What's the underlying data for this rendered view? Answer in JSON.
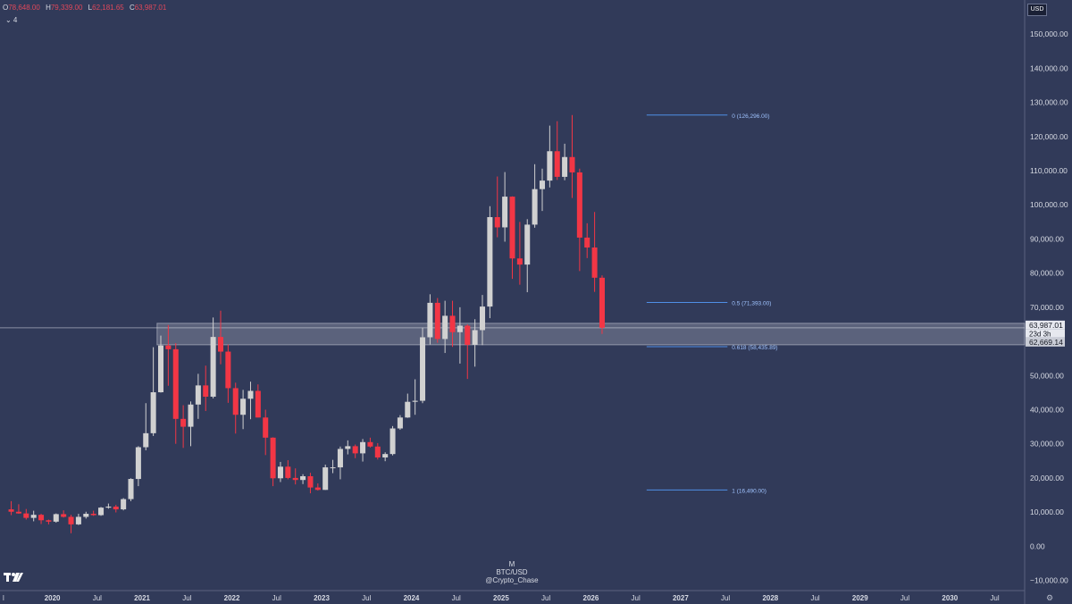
{
  "header": {
    "open_key": "O",
    "open": "78,648.00",
    "high_key": "H",
    "high": "79,339.00",
    "low_key": "L",
    "low": "62,181.65",
    "close_key": "C",
    "close": "63,987.01",
    "indicator_toggle": "⌄ 4",
    "currency": "USD"
  },
  "watermark": {
    "interval": "M",
    "symbol": "BTC/USD",
    "author": "@Crypto_Chase"
  },
  "price_badges": {
    "current": "63,987.01",
    "countdown": "23d 3h",
    "support": "62,669.14"
  },
  "colors": {
    "background": "#313a59",
    "up": "#d1d1d1",
    "down": "#f23645",
    "fib": "#4f8fe6",
    "zone": "#c8ccd8"
  },
  "chart_data": {
    "type": "candlestick",
    "title": "",
    "xlabel": "",
    "ylabel": "",
    "y_axis_ticks": [
      150000,
      140000,
      130000,
      120000,
      110000,
      100000,
      90000,
      80000,
      70000,
      60000,
      50000,
      40000,
      30000,
      20000,
      10000,
      0,
      -10000
    ],
    "y_axis_labels": [
      "150,000.00",
      "140,000.00",
      "130,000.00",
      "120,000.00",
      "110,000.00",
      "100,000.00",
      "90,000.00",
      "80,000.00",
      "70,000.00",
      "60,000.00",
      "50,000.00",
      "40,000.00",
      "30,000.00",
      "20,000.00",
      "10,000.00",
      "0.00",
      "−10,000.00"
    ],
    "ylim": [
      -13000,
      160000
    ],
    "x_axis_labels": [
      "2020",
      "Jul",
      "2021",
      "Jul",
      "2022",
      "Jul",
      "2023",
      "Jul",
      "2024",
      "Jul",
      "2025",
      "Jul",
      "2026",
      "Jul",
      "2027",
      "Jul",
      "2028",
      "Jul",
      "2029",
      "Jul",
      "2030",
      "Jul"
    ],
    "x_axis_label_dates": [
      "2020-01",
      "2020-07",
      "2021-01",
      "2021-07",
      "2022-01",
      "2022-07",
      "2023-01",
      "2023-07",
      "2024-01",
      "2024-07",
      "2025-01",
      "2025-07",
      "2026-01",
      "2026-07",
      "2027-01",
      "2027-07",
      "2028-01",
      "2028-07",
      "2029-01",
      "2029-07",
      "2030-01",
      "2030-07"
    ],
    "x_axis_partial_label": "l",
    "xlim": [
      "2019-06",
      "2030-11"
    ],
    "candles": [
      {
        "t": "2019-07",
        "o": 10800,
        "h": 13200,
        "l": 9100,
        "c": 10100
      },
      {
        "t": "2019-08",
        "o": 10100,
        "h": 12300,
        "l": 9500,
        "c": 9600
      },
      {
        "t": "2019-09",
        "o": 9600,
        "h": 10900,
        "l": 7800,
        "c": 8300
      },
      {
        "t": "2019-10",
        "o": 8300,
        "h": 10400,
        "l": 7300,
        "c": 9200
      },
      {
        "t": "2019-11",
        "o": 9200,
        "h": 9500,
        "l": 6500,
        "c": 7600
      },
      {
        "t": "2019-12",
        "o": 7600,
        "h": 7800,
        "l": 6400,
        "c": 7200
      },
      {
        "t": "2020-01",
        "o": 7200,
        "h": 9600,
        "l": 6900,
        "c": 9400
      },
      {
        "t": "2020-02",
        "o": 9400,
        "h": 10500,
        "l": 8400,
        "c": 8600
      },
      {
        "t": "2020-03",
        "o": 8600,
        "h": 9200,
        "l": 3800,
        "c": 6400
      },
      {
        "t": "2020-04",
        "o": 6400,
        "h": 9500,
        "l": 6200,
        "c": 8600
      },
      {
        "t": "2020-05",
        "o": 8600,
        "h": 10100,
        "l": 8100,
        "c": 9500
      },
      {
        "t": "2020-06",
        "o": 9500,
        "h": 10400,
        "l": 8900,
        "c": 9100
      },
      {
        "t": "2020-07",
        "o": 9100,
        "h": 11500,
        "l": 8900,
        "c": 11300
      },
      {
        "t": "2020-08",
        "o": 11300,
        "h": 12500,
        "l": 11000,
        "c": 11600
      },
      {
        "t": "2020-09",
        "o": 11600,
        "h": 12100,
        "l": 9900,
        "c": 10800
      },
      {
        "t": "2020-10",
        "o": 10800,
        "h": 14100,
        "l": 10500,
        "c": 13800
      },
      {
        "t": "2020-11",
        "o": 13800,
        "h": 19900,
        "l": 13200,
        "c": 19700
      },
      {
        "t": "2020-12",
        "o": 19700,
        "h": 29300,
        "l": 17600,
        "c": 29000
      },
      {
        "t": "2021-01",
        "o": 29000,
        "h": 41900,
        "l": 28100,
        "c": 33100
      },
      {
        "t": "2021-02",
        "o": 33100,
        "h": 58300,
        "l": 32300,
        "c": 45100
      },
      {
        "t": "2021-03",
        "o": 45100,
        "h": 61700,
        "l": 45000,
        "c": 58800
      },
      {
        "t": "2021-04",
        "o": 58800,
        "h": 64800,
        "l": 47000,
        "c": 57700
      },
      {
        "t": "2021-05",
        "o": 57700,
        "h": 59500,
        "l": 30000,
        "c": 37300
      },
      {
        "t": "2021-06",
        "o": 37300,
        "h": 41300,
        "l": 28800,
        "c": 35000
      },
      {
        "t": "2021-07",
        "o": 35000,
        "h": 42400,
        "l": 29300,
        "c": 41500
      },
      {
        "t": "2021-08",
        "o": 41500,
        "h": 50500,
        "l": 37300,
        "c": 47100
      },
      {
        "t": "2021-09",
        "o": 47100,
        "h": 52900,
        "l": 39600,
        "c": 43800
      },
      {
        "t": "2021-10",
        "o": 43800,
        "h": 67000,
        "l": 43300,
        "c": 61300
      },
      {
        "t": "2021-11",
        "o": 61300,
        "h": 69000,
        "l": 53300,
        "c": 57000
      },
      {
        "t": "2021-12",
        "o": 57000,
        "h": 59100,
        "l": 42000,
        "c": 46300
      },
      {
        "t": "2022-01",
        "o": 46300,
        "h": 47900,
        "l": 33000,
        "c": 38500
      },
      {
        "t": "2022-02",
        "o": 38500,
        "h": 45800,
        "l": 34300,
        "c": 43200
      },
      {
        "t": "2022-03",
        "o": 43200,
        "h": 48200,
        "l": 37200,
        "c": 45500
      },
      {
        "t": "2022-04",
        "o": 45500,
        "h": 47400,
        "l": 37700,
        "c": 37700
      },
      {
        "t": "2022-05",
        "o": 37700,
        "h": 40000,
        "l": 26700,
        "c": 31800
      },
      {
        "t": "2022-06",
        "o": 31800,
        "h": 31900,
        "l": 17600,
        "c": 19900
      },
      {
        "t": "2022-07",
        "o": 19900,
        "h": 24700,
        "l": 18800,
        "c": 23300
      },
      {
        "t": "2022-08",
        "o": 23300,
        "h": 25200,
        "l": 19600,
        "c": 20000
      },
      {
        "t": "2022-09",
        "o": 20000,
        "h": 22800,
        "l": 18100,
        "c": 19400
      },
      {
        "t": "2022-10",
        "o": 19400,
        "h": 21100,
        "l": 18200,
        "c": 20500
      },
      {
        "t": "2022-11",
        "o": 20500,
        "h": 21500,
        "l": 15500,
        "c": 17200
      },
      {
        "t": "2022-12",
        "o": 17200,
        "h": 18400,
        "l": 16300,
        "c": 16500
      },
      {
        "t": "2023-01",
        "o": 16500,
        "h": 23900,
        "l": 16500,
        "c": 23100
      },
      {
        "t": "2023-02",
        "o": 23100,
        "h": 25300,
        "l": 21400,
        "c": 23100
      },
      {
        "t": "2023-03",
        "o": 23100,
        "h": 29200,
        "l": 19600,
        "c": 28500
      },
      {
        "t": "2023-04",
        "o": 28500,
        "h": 31000,
        "l": 26900,
        "c": 29300
      },
      {
        "t": "2023-05",
        "o": 29300,
        "h": 29800,
        "l": 25800,
        "c": 27200
      },
      {
        "t": "2023-06",
        "o": 27200,
        "h": 31400,
        "l": 24800,
        "c": 30500
      },
      {
        "t": "2023-07",
        "o": 30500,
        "h": 31800,
        "l": 28900,
        "c": 29200
      },
      {
        "t": "2023-08",
        "o": 29200,
        "h": 30200,
        "l": 25400,
        "c": 26000
      },
      {
        "t": "2023-09",
        "o": 26000,
        "h": 27500,
        "l": 24900,
        "c": 27000
      },
      {
        "t": "2023-10",
        "o": 27000,
        "h": 35200,
        "l": 26600,
        "c": 34500
      },
      {
        "t": "2023-11",
        "o": 34500,
        "h": 38400,
        "l": 34100,
        "c": 37700
      },
      {
        "t": "2023-12",
        "o": 37700,
        "h": 44700,
        "l": 37600,
        "c": 42300
      },
      {
        "t": "2024-01",
        "o": 42300,
        "h": 48900,
        "l": 38500,
        "c": 42600
      },
      {
        "t": "2024-02",
        "o": 42600,
        "h": 64000,
        "l": 41900,
        "c": 61200
      },
      {
        "t": "2024-03",
        "o": 61200,
        "h": 73800,
        "l": 59100,
        "c": 71300
      },
      {
        "t": "2024-04",
        "o": 71300,
        "h": 72700,
        "l": 59600,
        "c": 60700
      },
      {
        "t": "2024-05",
        "o": 60700,
        "h": 71900,
        "l": 56600,
        "c": 67500
      },
      {
        "t": "2024-06",
        "o": 67500,
        "h": 71900,
        "l": 58400,
        "c": 62700
      },
      {
        "t": "2024-07",
        "o": 62700,
        "h": 70000,
        "l": 53500,
        "c": 64600
      },
      {
        "t": "2024-08",
        "o": 64600,
        "h": 65000,
        "l": 49000,
        "c": 59000
      },
      {
        "t": "2024-09",
        "o": 59000,
        "h": 66500,
        "l": 52600,
        "c": 63300
      },
      {
        "t": "2024-10",
        "o": 63300,
        "h": 73600,
        "l": 58900,
        "c": 70200
      },
      {
        "t": "2024-11",
        "o": 70200,
        "h": 99600,
        "l": 66800,
        "c": 96400
      },
      {
        "t": "2024-12",
        "o": 96400,
        "h": 108300,
        "l": 90500,
        "c": 93400
      },
      {
        "t": "2025-01",
        "o": 93400,
        "h": 109600,
        "l": 89200,
        "c": 102400
      },
      {
        "t": "2025-02",
        "o": 102400,
        "h": 102500,
        "l": 78300,
        "c": 84300
      },
      {
        "t": "2025-03",
        "o": 84300,
        "h": 95000,
        "l": 76600,
        "c": 82500
      },
      {
        "t": "2025-04",
        "o": 82500,
        "h": 95800,
        "l": 74400,
        "c": 94200
      },
      {
        "t": "2025-05",
        "o": 94200,
        "h": 111900,
        "l": 93300,
        "c": 104600
      },
      {
        "t": "2025-06",
        "o": 104600,
        "h": 110600,
        "l": 98200,
        "c": 107100
      },
      {
        "t": "2025-07",
        "o": 107100,
        "h": 123200,
        "l": 105100,
        "c": 115700
      },
      {
        "t": "2025-08",
        "o": 115700,
        "h": 124500,
        "l": 107300,
        "c": 108200
      },
      {
        "t": "2025-09",
        "o": 108200,
        "h": 117900,
        "l": 107200,
        "c": 114000
      },
      {
        "t": "2025-10",
        "o": 114000,
        "h": 126300,
        "l": 102000,
        "c": 109500
      },
      {
        "t": "2025-11",
        "o": 109500,
        "h": 110600,
        "l": 80600,
        "c": 90400
      },
      {
        "t": "2025-12",
        "o": 90400,
        "h": 94600,
        "l": 84400,
        "c": 87500
      },
      {
        "t": "2026-01",
        "o": 87500,
        "h": 97900,
        "l": 74500,
        "c": 78648
      },
      {
        "t": "2026-02",
        "o": 78648,
        "h": 79339,
        "l": 62181.65,
        "c": 63987.01
      }
    ],
    "fib_levels": [
      {
        "label": "0 (126,296.00)",
        "value": 126296
      },
      {
        "label": "0.5 (71,393.00)",
        "value": 71393
      },
      {
        "label": "0.618 (58,435.89)",
        "value": 58435.89
      },
      {
        "label": "1 (16,490.00)",
        "value": 16490
      }
    ],
    "support_zone": {
      "from": "2021-03",
      "top": 65300,
      "bottom": 59000
    },
    "current_price": 63987.01
  }
}
